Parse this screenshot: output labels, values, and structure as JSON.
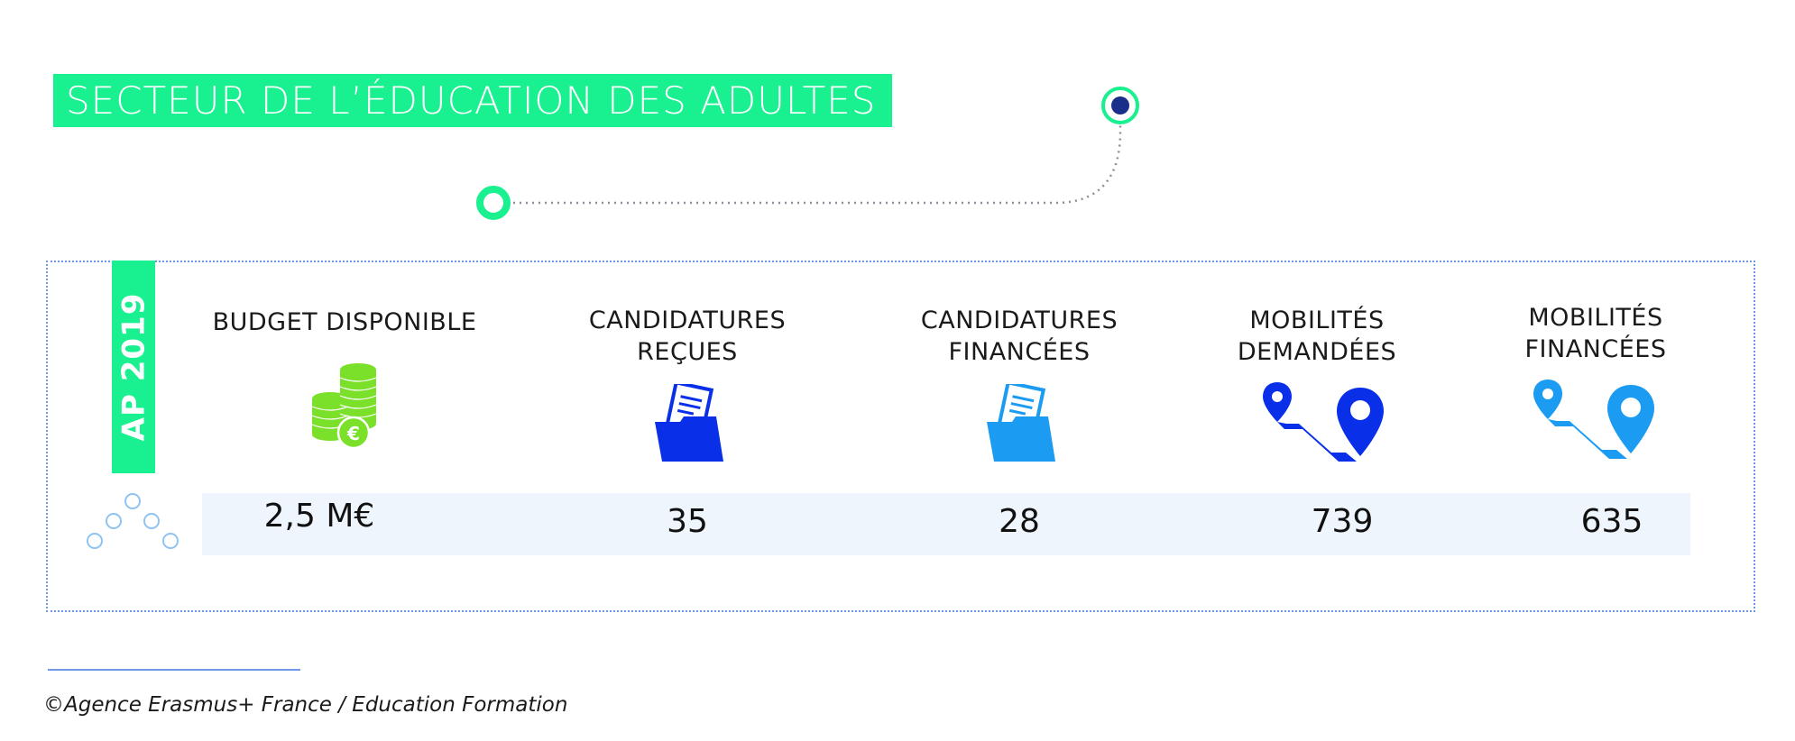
{
  "header": {
    "title": "SECTEUR DE L’ÉDUCATION DES ADULTES"
  },
  "panel": {
    "year_label": "AP 2019",
    "columns": [
      {
        "label_line1": "BUDGET DISPONIBLE",
        "label_line2": "",
        "icon": "coins-euro-icon",
        "value": "2,5 M€"
      },
      {
        "label_line1": "CANDIDATURES",
        "label_line2": "REÇUES",
        "icon": "folder-documents-icon",
        "value": "35"
      },
      {
        "label_line1": "CANDIDATURES",
        "label_line2": "FINANCÉES",
        "icon": "folder-documents-icon",
        "value": "28"
      },
      {
        "label_line1": "MOBILITÉS",
        "label_line2": "DEMANDÉES",
        "icon": "map-pins-route-icon",
        "value": "739"
      },
      {
        "label_line1": "MOBILITÉS",
        "label_line2": "FINANCÉES",
        "icon": "map-pins-route-icon",
        "value": "635"
      }
    ]
  },
  "footer": {
    "credit": "©Agence Erasmus+ France / Education Formation"
  },
  "colors": {
    "accent_green": "#19f08f",
    "coin_green": "#7be02a",
    "dark_blue": "#0a2fe8",
    "light_blue": "#1b9cf2",
    "navy": "#1a2f8a",
    "value_band": "#eef5fd",
    "dotted_border": "#6f98e8"
  }
}
